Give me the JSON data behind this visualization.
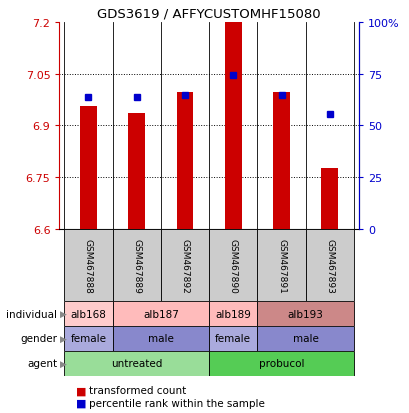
{
  "title": "GDS3619 / AFFYCUSTOMHF15080",
  "samples": [
    "GSM467888",
    "GSM467889",
    "GSM467892",
    "GSM467890",
    "GSM467891",
    "GSM467893"
  ],
  "bar_values": [
    6.955,
    6.935,
    6.995,
    7.2,
    6.995,
    6.775
  ],
  "bar_base": 6.6,
  "percentile_values": [
    6.982,
    6.982,
    6.988,
    7.045,
    6.988,
    6.932
  ],
  "ylim": [
    6.6,
    7.2
  ],
  "yticks_left": [
    6.6,
    6.75,
    6.9,
    7.05,
    7.2
  ],
  "yticks_right": [
    0,
    25,
    50,
    75,
    100
  ],
  "yticks_right_labels": [
    "0",
    "25",
    "50",
    "75",
    "100%"
  ],
  "bar_color": "#cc0000",
  "dot_color": "#0000cc",
  "agent_row": {
    "groups": [
      {
        "label": "untreated",
        "color": "#99dd99",
        "span": [
          0,
          3
        ]
      },
      {
        "label": "probucol",
        "color": "#55cc55",
        "span": [
          3,
          6
        ]
      }
    ]
  },
  "gender_row": {
    "groups": [
      {
        "label": "female",
        "color": "#aaaadd",
        "span": [
          0,
          1
        ]
      },
      {
        "label": "male",
        "color": "#8888cc",
        "span": [
          1,
          3
        ]
      },
      {
        "label": "female",
        "color": "#aaaadd",
        "span": [
          3,
          4
        ]
      },
      {
        "label": "male",
        "color": "#8888cc",
        "span": [
          4,
          6
        ]
      }
    ]
  },
  "individual_row": {
    "groups": [
      {
        "label": "alb168",
        "color": "#ffcccc",
        "span": [
          0,
          1
        ]
      },
      {
        "label": "alb187",
        "color": "#ffbbbb",
        "span": [
          1,
          3
        ]
      },
      {
        "label": "alb189",
        "color": "#ffbbbb",
        "span": [
          3,
          4
        ]
      },
      {
        "label": "alb193",
        "color": "#cc8888",
        "span": [
          4,
          6
        ]
      }
    ]
  },
  "sample_box_color": "#cccccc"
}
